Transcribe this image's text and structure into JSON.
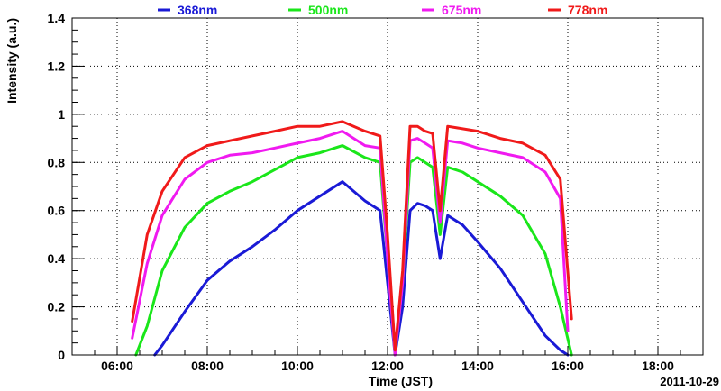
{
  "chart_data": {
    "type": "line",
    "title": "",
    "xlabel": "Time (JST)",
    "ylabel": "Intensity (a.u.)",
    "date_label": "2011-10-29",
    "xlim": [
      "05:00",
      "19:00"
    ],
    "ylim": [
      0,
      1.4
    ],
    "x_ticks": [
      "06:00",
      "08:00",
      "10:00",
      "12:00",
      "14:00",
      "16:00",
      "18:00"
    ],
    "y_ticks": [
      "0",
      "0.2",
      "0.4",
      "0.6",
      "0.8",
      "1",
      "1.2",
      "1.4"
    ],
    "grid": true,
    "legend_position": "top",
    "series": [
      {
        "name": "368nm",
        "color": "#1a1ad6",
        "x": [
          "06:50",
          "07:00",
          "07:30",
          "08:00",
          "08:30",
          "09:00",
          "09:30",
          "10:00",
          "10:30",
          "11:00",
          "11:30",
          "11:50",
          "12:00",
          "12:10",
          "12:20",
          "12:30",
          "12:40",
          "12:50",
          "13:00",
          "13:10",
          "13:20",
          "13:40",
          "14:00",
          "14:30",
          "15:00",
          "15:30",
          "15:50",
          "16:00"
        ],
        "values": [
          0.0,
          0.04,
          0.18,
          0.31,
          0.39,
          0.45,
          0.52,
          0.6,
          0.66,
          0.72,
          0.64,
          0.6,
          0.3,
          0.0,
          0.2,
          0.6,
          0.63,
          0.62,
          0.6,
          0.4,
          0.58,
          0.54,
          0.47,
          0.36,
          0.22,
          0.08,
          0.02,
          0.0
        ]
      },
      {
        "name": "500nm",
        "color": "#1ae61a",
        "x": [
          "06:25",
          "06:40",
          "07:00",
          "07:30",
          "08:00",
          "08:30",
          "09:00",
          "09:30",
          "10:00",
          "10:30",
          "11:00",
          "11:30",
          "11:50",
          "12:00",
          "12:10",
          "12:20",
          "12:30",
          "12:40",
          "12:50",
          "13:00",
          "13:10",
          "13:20",
          "13:40",
          "14:00",
          "14:30",
          "15:00",
          "15:30",
          "15:50",
          "16:05"
        ],
        "values": [
          0.0,
          0.12,
          0.35,
          0.53,
          0.63,
          0.68,
          0.72,
          0.77,
          0.82,
          0.84,
          0.87,
          0.82,
          0.8,
          0.4,
          0.0,
          0.3,
          0.8,
          0.82,
          0.8,
          0.78,
          0.5,
          0.78,
          0.76,
          0.72,
          0.66,
          0.58,
          0.42,
          0.2,
          0.0
        ]
      },
      {
        "name": "675nm",
        "color": "#f01af0",
        "x": [
          "06:20",
          "06:40",
          "07:00",
          "07:30",
          "08:00",
          "08:30",
          "09:00",
          "09:30",
          "10:00",
          "10:30",
          "11:00",
          "11:30",
          "11:50",
          "12:00",
          "12:10",
          "12:20",
          "12:30",
          "12:40",
          "12:50",
          "13:00",
          "13:10",
          "13:20",
          "13:40",
          "14:00",
          "14:30",
          "15:00",
          "15:30",
          "15:50",
          "16:00"
        ],
        "values": [
          0.07,
          0.38,
          0.58,
          0.73,
          0.8,
          0.83,
          0.84,
          0.86,
          0.88,
          0.9,
          0.93,
          0.87,
          0.86,
          0.4,
          0.0,
          0.3,
          0.89,
          0.9,
          0.88,
          0.86,
          0.55,
          0.89,
          0.88,
          0.86,
          0.84,
          0.82,
          0.76,
          0.65,
          0.1
        ]
      },
      {
        "name": "778nm",
        "color": "#f01a1a",
        "x": [
          "06:20",
          "06:40",
          "07:00",
          "07:30",
          "08:00",
          "08:30",
          "09:00",
          "09:30",
          "10:00",
          "10:30",
          "11:00",
          "11:30",
          "11:50",
          "12:00",
          "12:10",
          "12:20",
          "12:30",
          "12:40",
          "12:50",
          "13:00",
          "13:10",
          "13:20",
          "13:40",
          "14:00",
          "14:30",
          "15:00",
          "15:30",
          "15:50",
          "16:05"
        ],
        "values": [
          0.14,
          0.5,
          0.68,
          0.82,
          0.87,
          0.89,
          0.91,
          0.93,
          0.95,
          0.95,
          0.97,
          0.93,
          0.91,
          0.5,
          0.02,
          0.35,
          0.95,
          0.95,
          0.93,
          0.92,
          0.6,
          0.95,
          0.94,
          0.93,
          0.9,
          0.88,
          0.83,
          0.73,
          0.15
        ]
      }
    ]
  }
}
